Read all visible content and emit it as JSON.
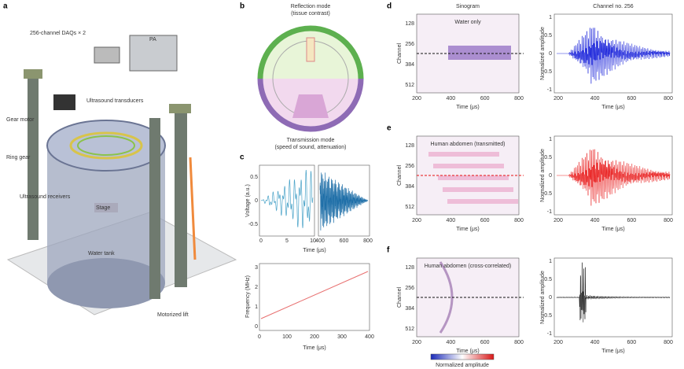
{
  "a": {
    "label": "a",
    "texts": [
      "256-channel DAQs × 2",
      "PA",
      "Ultrasound transducers",
      "Gear motor",
      "Ring gear",
      "Ultrasound receivers",
      "Stage",
      "Water tank",
      "Motorized lift"
    ]
  },
  "b": {
    "label": "b",
    "top": [
      "Reflection mode",
      "(tissue contrast)"
    ],
    "bottom": [
      "Transmission mode",
      "(speed of sound, attenuation)"
    ]
  },
  "c": {
    "label": "c",
    "top": {
      "ylabel": "Voltage (a.u.)",
      "xlabel": "Time (μs)",
      "yticks": [
        0.5,
        0,
        -0.5
      ],
      "xticks": [
        0,
        5,
        10,
        400,
        600,
        800
      ]
    },
    "bottom": {
      "ylabel": "Frequency (MHz)",
      "xlabel": "Time (μs)",
      "yticks": [
        3,
        2,
        1,
        0
      ],
      "xticks": [
        0,
        100,
        200,
        300,
        400
      ]
    }
  },
  "d": {
    "label": "d",
    "sinogram": {
      "title": "Sinogram",
      "annotation": "Water only",
      "ylabel": "Channel",
      "xlabel": "Time (μs)",
      "yticks": [
        128,
        256,
        384,
        512
      ],
      "xticks": [
        200,
        400,
        600,
        800
      ]
    },
    "trace": {
      "title": "Channel no. 256",
      "ylabel": "Normalized amplitude",
      "xlabel": "Time (μs)",
      "yticks": [
        1,
        0.5,
        0,
        -0.5,
        -1
      ],
      "xticks": [
        200,
        400,
        600,
        800
      ]
    }
  },
  "e": {
    "label": "e",
    "sinogram": {
      "annotation": "Human abdomen (transmitted)",
      "ylabel": "Channel",
      "xlabel": "Time (μs)",
      "yticks": [
        128,
        256,
        384,
        512
      ],
      "xticks": [
        200,
        400,
        600,
        800
      ]
    },
    "trace": {
      "ylabel": "Normalized amplitude",
      "xlabel": "Time (μs)",
      "yticks": [
        1,
        0.5,
        0,
        -0.5,
        -1
      ],
      "xticks": [
        200,
        400,
        600,
        800
      ]
    }
  },
  "f": {
    "label": "f",
    "sinogram": {
      "annotation": "Human abdomen (cross-correlated)",
      "ylabel": "Channel",
      "xlabel": "Time (μs)",
      "yticks": [
        128,
        256,
        384,
        512
      ],
      "xticks": [
        200,
        400,
        600,
        800
      ]
    },
    "trace": {
      "ylabel": "Normalized amplitude",
      "xlabel": "Time (μs)",
      "yticks": [
        1,
        0.5,
        0,
        -0.5,
        -1
      ],
      "xticks": [
        200,
        400,
        600,
        800
      ]
    },
    "colorbar": {
      "label": "Normalized amplitude"
    }
  }
}
